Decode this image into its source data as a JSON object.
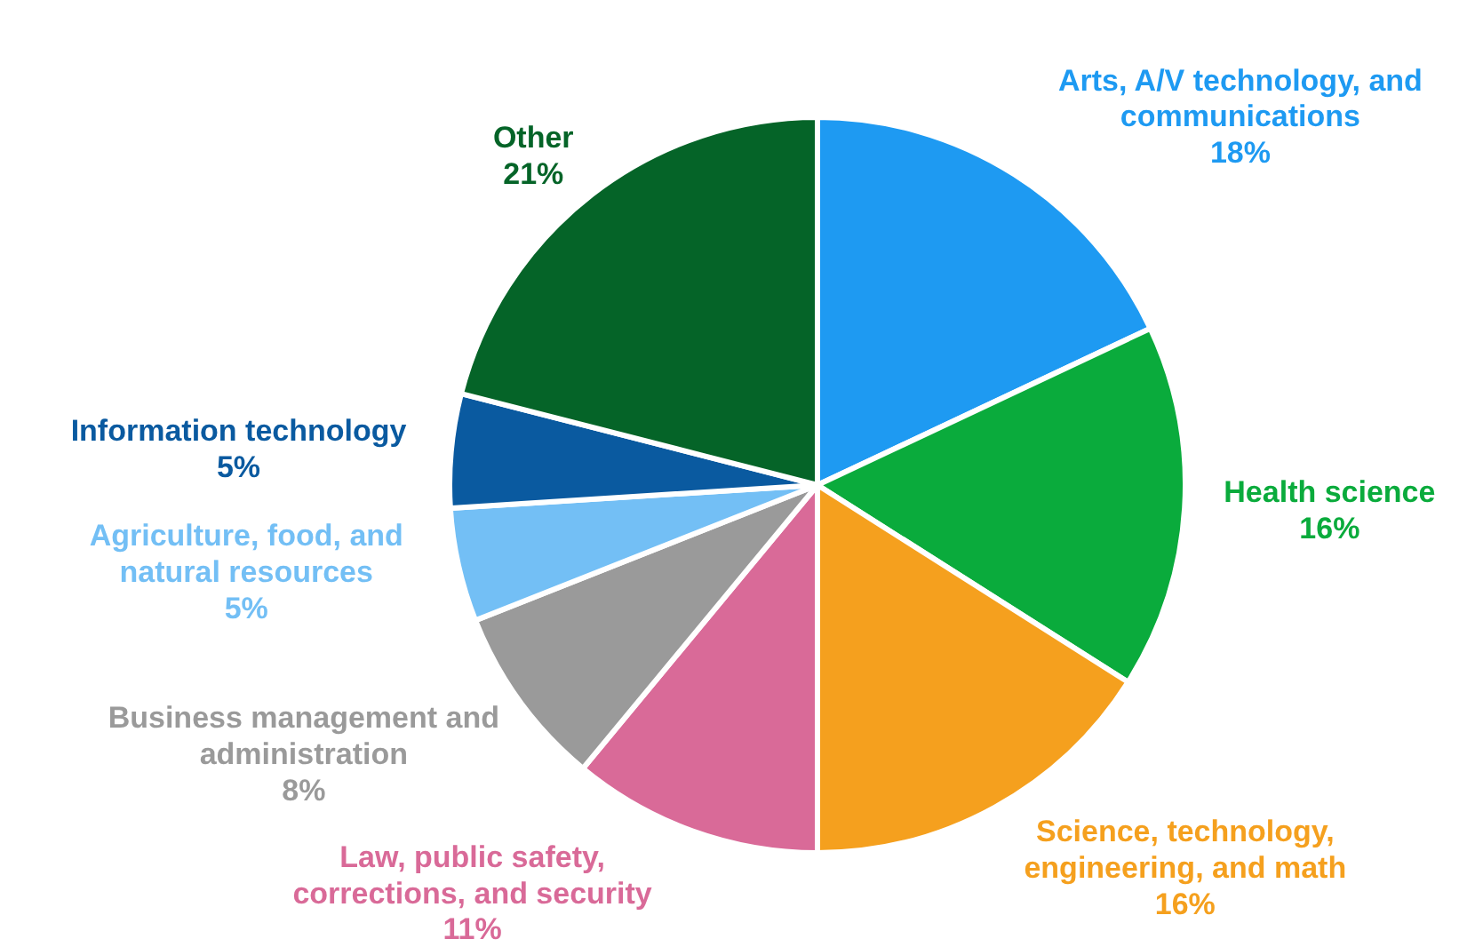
{
  "chart_data": {
    "type": "pie",
    "categories": [
      "Arts, A/V technology, and communications",
      "Health science",
      "Science, technology, engineering, and math",
      "Law, public safety, corrections, and security",
      "Business management and administration",
      "Agriculture, food, and natural resources",
      "Information technology",
      "Other"
    ],
    "values": [
      18,
      16,
      16,
      11,
      8,
      5,
      5,
      21
    ],
    "value_labels": [
      "18%",
      "16%",
      "16%",
      "11%",
      "8%",
      "5%",
      "5%",
      "21%"
    ],
    "colors": [
      "#1e9af2",
      "#0aab3c",
      "#f5a01e",
      "#d96a98",
      "#9a9a9a",
      "#73bff5",
      "#0a5aa0",
      "#056428"
    ],
    "legend": false
  }
}
